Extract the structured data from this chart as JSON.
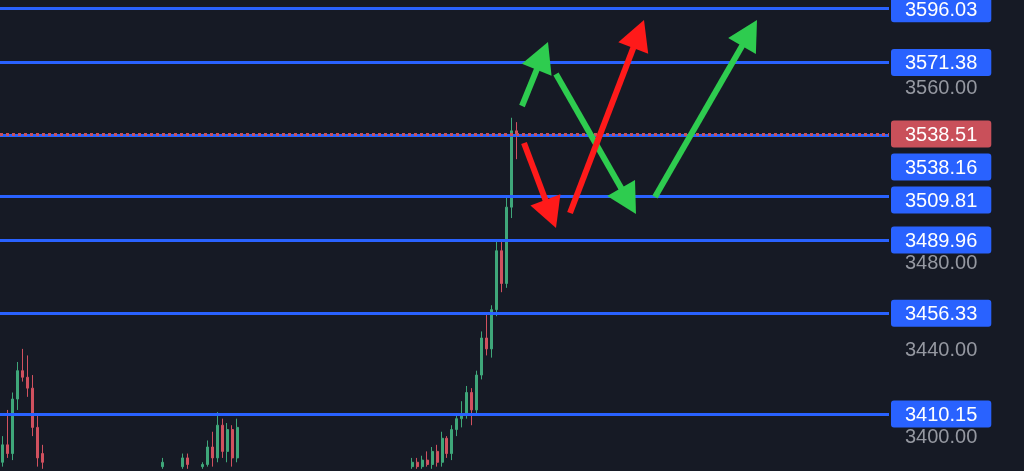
{
  "chart_data": {
    "type": "candlestick",
    "categories": [
      null,
      null,
      null,
      null,
      null,
      null,
      null,
      null,
      null,
      null,
      null,
      null,
      null,
      null,
      null,
      null,
      null,
      null,
      null,
      null,
      null,
      null,
      null,
      null,
      null,
      null,
      null,
      null,
      null,
      null,
      null,
      null,
      null,
      null,
      null,
      null,
      null,
      null,
      null,
      null,
      null,
      null,
      null,
      null,
      null,
      null,
      null,
      null,
      null,
      null,
      null,
      null,
      null,
      null,
      null,
      null,
      null,
      null,
      null,
      null,
      null,
      null,
      null,
      null,
      null,
      null,
      null,
      null,
      null,
      null,
      null,
      null,
      null,
      null,
      null,
      null,
      null,
      null,
      null,
      null,
      null,
      null,
      null,
      null,
      null,
      null,
      null,
      null,
      null,
      null,
      null,
      null,
      null,
      null,
      null,
      null,
      null,
      null,
      null,
      null,
      null,
      null,
      null,
      null,
      null,
      null,
      null,
      null,
      null,
      null,
      null,
      null,
      null,
      null,
      null,
      null,
      null,
      null,
      null,
      null,
      null,
      null,
      null,
      null,
      null,
      null,
      null,
      null,
      null,
      null,
      null,
      null,
      null,
      null,
      null,
      null,
      null,
      null,
      null,
      null,
      null,
      null,
      null,
      null,
      null,
      null,
      null,
      null,
      null,
      null,
      null,
      null,
      null,
      null,
      null,
      null,
      null,
      null,
      null,
      null,
      null,
      null,
      null,
      null,
      null,
      null,
      null,
      null,
      null,
      null,
      null,
      null,
      null,
      null,
      null,
      null,
      null,
      null
    ],
    "ohlc": [
      [
        3388,
        3400,
        3386,
        3396
      ],
      [
        3396,
        3412,
        3390,
        3392
      ],
      [
        3392,
        3420,
        3389,
        3417
      ],
      [
        3417,
        3434,
        3412,
        3430
      ],
      [
        3430,
        3440,
        3425,
        3427
      ],
      [
        3427,
        3437,
        3418,
        3422
      ],
      [
        3422,
        3428,
        3400,
        3404
      ],
      [
        3404,
        3410,
        3386,
        3390
      ],
      [
        3392,
        3396,
        3385,
        3388
      ],
      null,
      null,
      null,
      null,
      null,
      null,
      null,
      null,
      null,
      null,
      null,
      null,
      null,
      null,
      null,
      null,
      null,
      null,
      null,
      null,
      null,
      null,
      null,
      [
        3386,
        3390,
        3385,
        3388
      ],
      null,
      null,
      null,
      [
        3386,
        3392,
        3385,
        3390
      ],
      [
        3390,
        3392,
        3385,
        3387
      ],
      null,
      null,
      [
        3386,
        3388,
        3385,
        3387
      ],
      [
        3387,
        3398,
        3386,
        3395
      ],
      [
        3395,
        3402,
        3386,
        3390
      ],
      [
        3390,
        3411,
        3388,
        3405
      ],
      [
        3405,
        3408,
        3390,
        3393
      ],
      [
        3393,
        3406,
        3388,
        3403
      ],
      [
        3403,
        3405,
        3386,
        3390
      ],
      [
        3390,
        3408,
        3388,
        3404
      ],
      null,
      null,
      null,
      null,
      null,
      null,
      null,
      null,
      null,
      null,
      null,
      null,
      null,
      null,
      null,
      null,
      null,
      null,
      null,
      null,
      null,
      null,
      null,
      null,
      null,
      null,
      null,
      null,
      null,
      null,
      null,
      null,
      null,
      null,
      [
        3386,
        3390,
        3385,
        3388
      ],
      [
        3388,
        3390,
        3385,
        3386
      ],
      [
        3386,
        3391,
        3385,
        3389
      ],
      [
        3389,
        3393,
        3386,
        3387
      ],
      [
        3387,
        3395,
        3385,
        3393
      ],
      [
        3393,
        3396,
        3386,
        3388
      ],
      [
        3388,
        3402,
        3386,
        3399
      ],
      [
        3399,
        3400,
        3390,
        3392
      ],
      [
        3392,
        3405,
        3389,
        3403
      ],
      [
        3403,
        3410,
        3400,
        3408
      ],
      [
        3408,
        3416,
        3404,
        3410
      ],
      [
        3410,
        3423,
        3408,
        3420
      ],
      [
        3420,
        3422,
        3405,
        3412
      ],
      [
        3412,
        3430,
        3410,
        3428
      ],
      [
        3428,
        3448,
        3426,
        3445
      ],
      [
        3445,
        3456,
        3437,
        3440
      ],
      [
        3440,
        3460,
        3436,
        3458
      ],
      [
        3458,
        3490,
        3455,
        3485
      ],
      [
        3485,
        3490,
        3466,
        3470
      ],
      [
        3470,
        3510,
        3468,
        3505
      ],
      [
        3505,
        3546,
        3500,
        3540
      ],
      [
        3540,
        3544,
        3527,
        3538.51
      ],
      null,
      null,
      null,
      null,
      null,
      null,
      null,
      null,
      null,
      null,
      null,
      null,
      null,
      null,
      null,
      null,
      null,
      null,
      null,
      null,
      null,
      null,
      null,
      null,
      null,
      null,
      null,
      null,
      null,
      null,
      null,
      null,
      null,
      null,
      null,
      null,
      null,
      null,
      null,
      null,
      null,
      null,
      null,
      null,
      null,
      null,
      null,
      null,
      null,
      null,
      null,
      null,
      null,
      null,
      null,
      null,
      null,
      null,
      null,
      null,
      null,
      null,
      null,
      null,
      null,
      null,
      null,
      null,
      null,
      null,
      null,
      null,
      null,
      null
    ],
    "ylim": [
      3384,
      3600
    ],
    "yticks": [
      {
        "value": 3400,
        "label": "3400.00"
      },
      {
        "value": 3440,
        "label": "3440.00"
      },
      {
        "value": 3480,
        "label": "3480.00"
      },
      {
        "value": 3560,
        "label": "3560.00"
      }
    ],
    "tick_labels": "y",
    "ref_lines": [
      {
        "axis": "y",
        "value": 3596.03,
        "label": "3596.03",
        "color": "#2962ff"
      },
      {
        "axis": "y",
        "value": 3571.38,
        "label": "3571.38",
        "color": "#2962ff"
      },
      {
        "axis": "y",
        "value": 3538.16,
        "label": "3538.16",
        "color": "#2962ff"
      },
      {
        "axis": "y",
        "value": 3509.81,
        "label": "3509.81",
        "color": "#2962ff"
      },
      {
        "axis": "y",
        "value": 3489.96,
        "label": "3489.96",
        "color": "#2962ff"
      },
      {
        "axis": "y",
        "value": 3456.33,
        "label": "3456.33",
        "color": "#2962ff"
      },
      {
        "axis": "y",
        "value": 3410.15,
        "label": "3410.15",
        "color": "#2962ff"
      },
      {
        "axis": "y",
        "value": 3538.51,
        "label": "3538.51",
        "color": "#c9505a",
        "line_style": "dotted"
      }
    ]
  }
}
